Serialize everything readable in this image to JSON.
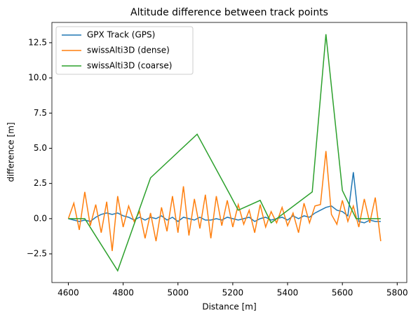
{
  "chart_data": {
    "type": "line",
    "title": "Altitude difference between track points",
    "xlabel": "Distance [m]",
    "ylabel": "difference [m]",
    "xlim": [
      4540,
      5835
    ],
    "ylim": [
      -4.54,
      13.94
    ],
    "xticks": [
      4600,
      4800,
      5000,
      5200,
      5400,
      5600,
      5800
    ],
    "yticks": [
      {
        "value": -2.5,
        "label": "−2.5"
      },
      {
        "value": 0,
        "label": "0.0"
      },
      2.5,
      {
        "value": 5,
        "label": "5.0"
      },
      7.5,
      {
        "value": 10,
        "label": "10.0"
      },
      12.5
    ],
    "legend": "upper left",
    "grid": false,
    "series": [
      {
        "name": "GPX Track (GPS)",
        "color": "#1f77b4",
        "x": [
          4600,
          4620,
          4640,
          4660,
          4680,
          4700,
          4720,
          4740,
          4760,
          4780,
          4800,
          4820,
          4840,
          4860,
          4880,
          4900,
          4920,
          4940,
          4960,
          4980,
          5000,
          5020,
          5040,
          5060,
          5080,
          5100,
          5120,
          5140,
          5160,
          5180,
          5200,
          5220,
          5240,
          5260,
          5280,
          5300,
          5320,
          5340,
          5360,
          5380,
          5400,
          5420,
          5440,
          5460,
          5480,
          5500,
          5520,
          5540,
          5560,
          5580,
          5600,
          5620,
          5640,
          5660,
          5680,
          5700,
          5720,
          5740
        ],
        "values": [
          0,
          -0.1,
          -0.2,
          -0.1,
          -0.2,
          0.1,
          0.3,
          0.4,
          0.3,
          0.4,
          0.2,
          0.1,
          -0.1,
          0.1,
          -0.1,
          0.1,
          0,
          0.2,
          -0.1,
          0.1,
          -0.2,
          0.1,
          0,
          -0.1,
          0.1,
          -0.1,
          -0.1,
          0,
          -0.1,
          0.1,
          0,
          -0.1,
          0,
          0.1,
          -0.2,
          0,
          0.1,
          -0.1,
          0,
          0.1,
          -0.1,
          0.2,
          0,
          0.2,
          0.1,
          0.4,
          0.6,
          0.8,
          0.9,
          0.6,
          0.5,
          0.2,
          3.3,
          -0.2,
          -0.3,
          -0.1,
          -0.2,
          -0.2
        ]
      },
      {
        "name": "swissAlti3D (dense)",
        "color": "#ff7f0e",
        "x": [
          4600,
          4620,
          4640,
          4660,
          4680,
          4700,
          4720,
          4740,
          4760,
          4780,
          4800,
          4820,
          4840,
          4860,
          4880,
          4900,
          4920,
          4940,
          4960,
          4980,
          5000,
          5020,
          5040,
          5060,
          5080,
          5100,
          5120,
          5140,
          5160,
          5180,
          5200,
          5220,
          5240,
          5260,
          5280,
          5300,
          5320,
          5340,
          5360,
          5380,
          5400,
          5420,
          5440,
          5460,
          5480,
          5500,
          5520,
          5540,
          5560,
          5580,
          5600,
          5620,
          5640,
          5660,
          5680,
          5700,
          5720,
          5740
        ],
        "values": [
          0,
          1.1,
          -0.8,
          1.9,
          -0.5,
          1.0,
          -1.0,
          1.2,
          -2.3,
          1.6,
          -0.6,
          0.9,
          -0.2,
          0.5,
          -1.4,
          0.4,
          -1.6,
          0.8,
          -0.9,
          1.6,
          -1.0,
          2.3,
          -1.2,
          1.4,
          -0.7,
          1.7,
          -1.4,
          1.6,
          -0.5,
          1.3,
          -0.6,
          1.0,
          -0.4,
          0.6,
          -1.0,
          1.0,
          -0.6,
          0.5,
          -0.3,
          0.8,
          -0.5,
          0.4,
          -1.0,
          1.1,
          -0.3,
          0.9,
          1.0,
          4.8,
          0.3,
          -0.4,
          1.3,
          -0.2,
          0.9,
          -0.6,
          1.4,
          -0.3,
          1.5,
          -1.6
        ]
      },
      {
        "name": "swissAlti3D (coarse)",
        "color": "#2ca02c",
        "x": [
          4600,
          4660,
          4780,
          4900,
          5070,
          5190,
          5220,
          5300,
          5340,
          5490,
          5540,
          5600,
          5650,
          5740
        ],
        "values": [
          0,
          0,
          -3.7,
          2.9,
          6.0,
          1.7,
          0.6,
          1.3,
          -0.3,
          1.9,
          13.1,
          2.0,
          0,
          0
        ]
      }
    ]
  }
}
